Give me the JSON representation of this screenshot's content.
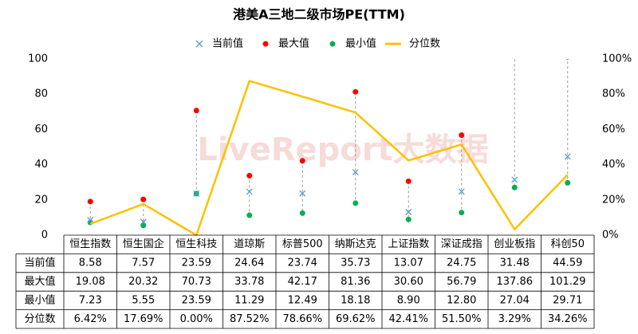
{
  "chart_data": {
    "type": "dot-range-line",
    "title": "港美A三地二级市场PE(TTM)",
    "watermark": "LiveReport大数据",
    "categories": [
      "恒生指数",
      "恒生国企",
      "恒生科技",
      "道琼斯",
      "标普500",
      "纳斯达克",
      "上证指数",
      "深证成指",
      "创业板指",
      "科创50"
    ],
    "series": [
      {
        "name": "当前值",
        "color": "#5b9bd5",
        "values": [
          8.58,
          7.57,
          23.59,
          24.64,
          23.74,
          35.73,
          13.07,
          24.75,
          31.48,
          44.59
        ],
        "value_labels": [
          "8.58",
          "7.57",
          "23.59",
          "24.64",
          "23.74",
          "35.73",
          "13.07",
          "24.75",
          "31.48",
          "44.59"
        ]
      },
      {
        "name": "最大值",
        "color": "#ff0000",
        "values": [
          19.08,
          20.32,
          70.73,
          33.78,
          42.17,
          81.36,
          30.6,
          56.79,
          137.86,
          101.29
        ],
        "value_labels": [
          "19.08",
          "20.32",
          "70.73",
          "33.78",
          "42.17",
          "81.36",
          "30.60",
          "56.79",
          "137.86",
          "101.29"
        ]
      },
      {
        "name": "最小值",
        "color": "#00b050",
        "values": [
          7.23,
          5.55,
          23.59,
          11.29,
          12.49,
          18.18,
          8.9,
          12.8,
          27.04,
          29.71
        ],
        "value_labels": [
          "7.23",
          "5.55",
          "23.59",
          "11.29",
          "12.49",
          "18.18",
          "8.90",
          "12.80",
          "27.04",
          "29.71"
        ]
      },
      {
        "name": "分位数",
        "color": "#ffc000",
        "axis": "y2",
        "values": [
          6.42,
          17.69,
          0,
          87.52,
          78.66,
          69.62,
          42.41,
          51.5,
          3.29,
          34.26
        ],
        "value_labels": [
          "6.42%",
          "17.69%",
          "0.00%",
          "87.52%",
          "78.66%",
          "69.62%",
          "42.41%",
          "51.50%",
          "3.29%",
          "34.26%"
        ]
      }
    ],
    "ylim": [
      0,
      100
    ],
    "yticks": [
      0,
      20,
      40,
      60,
      80,
      100
    ],
    "y2lim": [
      0,
      100
    ],
    "y2ticks": [
      {
        "value": 0,
        "label": "0%"
      },
      {
        "value": 20,
        "label": "20%"
      },
      {
        "value": 40,
        "label": "40%"
      },
      {
        "value": 60,
        "label": "60%"
      },
      {
        "value": 80,
        "label": "80%"
      },
      {
        "value": 100,
        "label": "100%"
      }
    ]
  }
}
